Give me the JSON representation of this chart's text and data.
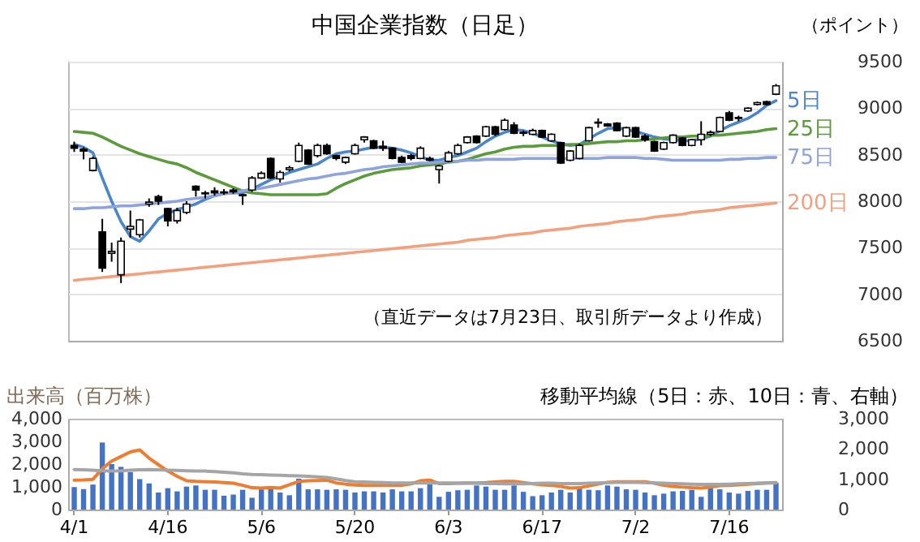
{
  "chart_data": [
    {
      "type": "candlestick",
      "title": "中国企業指数（日足）",
      "ylabel": "（ポイント）",
      "annotations": [
        "（直近データは7月23日、取引所データより作成）"
      ],
      "categories": [
        null,
        null,
        null,
        null,
        null,
        null,
        null,
        null,
        null,
        null,
        null,
        null,
        null,
        null,
        null,
        null,
        null,
        null,
        null,
        null,
        null,
        null,
        null,
        null,
        null,
        null,
        null,
        null,
        null,
        null,
        null,
        null,
        null,
        null,
        null,
        null,
        null,
        null,
        null,
        null,
        null,
        null,
        null,
        null,
        null,
        null,
        null,
        null,
        null,
        null,
        null,
        null,
        null,
        null,
        null,
        null,
        null,
        null,
        null,
        null,
        null,
        null,
        null,
        null,
        null,
        null,
        null,
        null,
        null,
        null,
        null,
        null,
        null,
        null,
        null,
        null
      ],
      "ohlc": [
        [
          8600,
          8640,
          8530,
          8570
        ],
        [
          8560,
          8580,
          8450,
          8540
        ],
        [
          8330,
          8480,
          8320,
          8460
        ],
        [
          7670,
          7810,
          7240,
          7280
        ],
        [
          7440,
          7555,
          7350,
          7460
        ],
        [
          7210,
          7610,
          7120,
          7570
        ],
        [
          7700,
          7900,
          7610,
          7730
        ],
        [
          7640,
          7810,
          7610,
          7800
        ],
        [
          7970,
          8030,
          7940,
          7990
        ],
        [
          8050,
          8070,
          7960,
          8000
        ],
        [
          7920,
          7930,
          7730,
          7790
        ],
        [
          7790,
          7930,
          7760,
          7900
        ],
        [
          7880,
          8000,
          7860,
          7970
        ],
        [
          8160,
          8170,
          8050,
          8120
        ],
        [
          8090,
          8110,
          8030,
          8080
        ],
        [
          8110,
          8150,
          8060,
          8090
        ],
        [
          8100,
          8130,
          8070,
          8090
        ],
        [
          8120,
          8140,
          8080,
          8100
        ],
        [
          8070,
          8080,
          7960,
          8060
        ],
        [
          8120,
          8270,
          8100,
          8250
        ],
        [
          8250,
          8320,
          8240,
          8300
        ],
        [
          8460,
          8470,
          8240,
          8250
        ],
        [
          8240,
          8330,
          8200,
          8310
        ],
        [
          8340,
          8380,
          8320,
          8360
        ],
        [
          8430,
          8630,
          8420,
          8600
        ],
        [
          8550,
          8560,
          8390,
          8400
        ],
        [
          8490,
          8620,
          8470,
          8600
        ],
        [
          8600,
          8620,
          8500,
          8510
        ],
        [
          8490,
          8500,
          8440,
          8460
        ],
        [
          8420,
          8480,
          8400,
          8470
        ],
        [
          8510,
          8620,
          8500,
          8600
        ],
        [
          8660,
          8700,
          8630,
          8690
        ],
        [
          8650,
          8660,
          8560,
          8570
        ],
        [
          8590,
          8650,
          8540,
          8570
        ],
        [
          8570,
          8580,
          8450,
          8460
        ],
        [
          8470,
          8490,
          8410,
          8420
        ],
        [
          8490,
          8510,
          8440,
          8460
        ],
        [
          8460,
          8590,
          8450,
          8570
        ],
        [
          8460,
          8480,
          8430,
          8440
        ],
        [
          8340,
          8390,
          8190,
          8380
        ],
        [
          8430,
          8540,
          8420,
          8520
        ],
        [
          8510,
          8620,
          8500,
          8600
        ],
        [
          8630,
          8700,
          8620,
          8690
        ],
        [
          8700,
          8710,
          8620,
          8630
        ],
        [
          8700,
          8810,
          8690,
          8800
        ],
        [
          8800,
          8810,
          8700,
          8720
        ],
        [
          8770,
          8890,
          8760,
          8870
        ],
        [
          8820,
          8850,
          8720,
          8730
        ],
        [
          8730,
          8760,
          8700,
          8740
        ],
        [
          8720,
          8780,
          8710,
          8760
        ],
        [
          8760,
          8770,
          8680,
          8690
        ],
        [
          8650,
          8730,
          8640,
          8720
        ],
        [
          8630,
          8640,
          8400,
          8410
        ],
        [
          8440,
          8550,
          8430,
          8540
        ],
        [
          8460,
          8620,
          8450,
          8600
        ],
        [
          8650,
          8800,
          8640,
          8790
        ],
        [
          8850,
          8890,
          8790,
          8840
        ],
        [
          8830,
          8840,
          8800,
          8810
        ],
        [
          8840,
          8850,
          8750,
          8760
        ],
        [
          8700,
          8800,
          8690,
          8790
        ],
        [
          8790,
          8800,
          8680,
          8690
        ],
        [
          8700,
          8720,
          8640,
          8660
        ],
        [
          8640,
          8650,
          8530,
          8540
        ],
        [
          8560,
          8640,
          8550,
          8630
        ],
        [
          8630,
          8720,
          8620,
          8710
        ],
        [
          8680,
          8690,
          8590,
          8600
        ],
        [
          8600,
          8670,
          8590,
          8660
        ],
        [
          8660,
          8860,
          8600,
          8720
        ],
        [
          8720,
          8760,
          8700,
          8740
        ],
        [
          8750,
          8910,
          8740,
          8900
        ],
        [
          8950,
          8970,
          8860,
          8870
        ],
        [
          8890,
          8920,
          8860,
          8900
        ],
        [
          8970,
          9010,
          8960,
          9000
        ],
        [
          9040,
          9070,
          9030,
          9060
        ],
        [
          9070,
          9080,
          9030,
          9040
        ],
        [
          9150,
          9260,
          9140,
          9240
        ]
      ],
      "series": [
        {
          "type": "line",
          "name": "5日",
          "color": "#4a86c8",
          "values": [
            8610,
            8580,
            8520,
            8250,
            8000,
            7780,
            7620,
            7570,
            7680,
            7810,
            7870,
            7910,
            7940,
            7970,
            8020,
            8060,
            8080,
            8090,
            8090,
            8130,
            8180,
            8230,
            8270,
            8310,
            8340,
            8370,
            8400,
            8460,
            8510,
            8530,
            8540,
            8560,
            8580,
            8580,
            8570,
            8550,
            8520,
            8480,
            8440,
            8440,
            8470,
            8490,
            8530,
            8570,
            8640,
            8700,
            8740,
            8770,
            8760,
            8730,
            8690,
            8650,
            8620,
            8600,
            8610,
            8670,
            8730,
            8780,
            8790,
            8770,
            8750,
            8720,
            8690,
            8670,
            8660,
            8650,
            8650,
            8670,
            8700,
            8760,
            8810,
            8850,
            8890,
            8950,
            9030,
            9080
          ]
        },
        {
          "type": "line",
          "name": "25日",
          "color": "#5b9b3c",
          "values": [
            8750,
            8740,
            8730,
            8690,
            8640,
            8590,
            8550,
            8510,
            8480,
            8450,
            8420,
            8400,
            8360,
            8310,
            8270,
            8230,
            8190,
            8150,
            8110,
            8090,
            8080,
            8070,
            8070,
            8070,
            8070,
            8070,
            8070,
            8080,
            8140,
            8190,
            8230,
            8270,
            8300,
            8320,
            8340,
            8350,
            8360,
            8380,
            8390,
            8400,
            8420,
            8430,
            8450,
            8480,
            8510,
            8530,
            8560,
            8580,
            8590,
            8590,
            8600,
            8600,
            8600,
            8610,
            8610,
            8620,
            8630,
            8640,
            8640,
            8650,
            8650,
            8660,
            8670,
            8680,
            8690,
            8690,
            8700,
            8700,
            8710,
            8710,
            8720,
            8730,
            8740,
            8750,
            8770,
            8780
          ]
        },
        {
          "type": "line",
          "name": "75日",
          "color": "#8fa3dd",
          "values": [
            7920,
            7920,
            7930,
            7930,
            7940,
            7950,
            7950,
            7960,
            7970,
            7980,
            7990,
            8000,
            8020,
            8030,
            8040,
            8060,
            8080,
            8090,
            8110,
            8130,
            8140,
            8160,
            8180,
            8200,
            8220,
            8240,
            8250,
            8270,
            8290,
            8300,
            8320,
            8340,
            8350,
            8370,
            8380,
            8390,
            8400,
            8410,
            8410,
            8420,
            8430,
            8430,
            8440,
            8440,
            8450,
            8450,
            8450,
            8450,
            8460,
            8460,
            8460,
            8460,
            8460,
            8460,
            8460,
            8460,
            8460,
            8470,
            8470,
            8470,
            8470,
            8460,
            8460,
            8450,
            8440,
            8440,
            8440,
            8440,
            8440,
            8440,
            8450,
            8450,
            8460,
            8460,
            8470,
            8470
          ]
        },
        {
          "type": "line",
          "name": "200日",
          "color": "#f2a07e",
          "values": [
            7150,
            7160,
            7170,
            7180,
            7190,
            7200,
            7210,
            7220,
            7230,
            7240,
            7250,
            7260,
            7270,
            7280,
            7290,
            7300,
            7310,
            7320,
            7330,
            7340,
            7350,
            7360,
            7370,
            7380,
            7390,
            7400,
            7410,
            7420,
            7430,
            7440,
            7450,
            7460,
            7470,
            7480,
            7490,
            7500,
            7510,
            7520,
            7530,
            7540,
            7550,
            7560,
            7580,
            7590,
            7600,
            7610,
            7630,
            7640,
            7650,
            7660,
            7680,
            7690,
            7700,
            7710,
            7730,
            7740,
            7750,
            7760,
            7780,
            7790,
            7800,
            7810,
            7830,
            7840,
            7850,
            7860,
            7880,
            7890,
            7900,
            7910,
            7930,
            7940,
            7950,
            7960,
            7970,
            7980
          ]
        }
      ],
      "ylim": [
        6500,
        9500
      ],
      "yticks": [
        6500,
        7000,
        7500,
        8000,
        8500,
        9000,
        9500
      ],
      "grid": "y",
      "tick_labels": "y"
    },
    {
      "type": "bar",
      "ylabel": "出来高（百万株）",
      "y2label": "移動平均線（5日：赤、10日：青、右軸）",
      "categories": [
        "4/1",
        null,
        null,
        null,
        null,
        null,
        null,
        null,
        null,
        null,
        "4/16",
        null,
        null,
        null,
        null,
        null,
        null,
        null,
        null,
        null,
        "5/6",
        null,
        null,
        null,
        null,
        null,
        null,
        null,
        null,
        null,
        "5/20",
        null,
        null,
        null,
        null,
        null,
        null,
        null,
        null,
        null,
        "6/3",
        null,
        null,
        null,
        null,
        null,
        null,
        null,
        null,
        null,
        "6/17",
        null,
        null,
        null,
        null,
        null,
        null,
        null,
        null,
        null,
        "7/2",
        null,
        null,
        null,
        null,
        null,
        null,
        null,
        null,
        null,
        "7/16",
        null,
        null,
        null,
        null,
        null
      ],
      "series": [
        {
          "color": "#4472c4",
          "values": [
            990,
            900,
            1100,
            2950,
            2000,
            1880,
            1650,
            1340,
            1150,
            750,
            940,
            800,
            1010,
            1060,
            870,
            870,
            610,
            660,
            870,
            520,
            890,
            990,
            750,
            630,
            1360,
            890,
            890,
            870,
            890,
            870,
            750,
            800,
            800,
            750,
            890,
            800,
            800,
            940,
            1340,
            560,
            780,
            850,
            870,
            1060,
            1010,
            870,
            870,
            1060,
            780,
            590,
            630,
            750,
            870,
            750,
            940,
            870,
            850,
            1060,
            1010,
            890,
            870,
            750,
            630,
            700,
            800,
            820,
            870,
            560,
            1010,
            890,
            750,
            700,
            820,
            870,
            870,
            1180
          ]
        },
        {
          "type": "line",
          "axis": "y2",
          "color": "#ed7d31",
          "values": [
            970,
            980,
            1000,
            1350,
            1600,
            1750,
            1900,
            1970,
            1700,
            1480,
            1270,
            1100,
            950,
            930,
            920,
            910,
            890,
            870,
            800,
            720,
            710,
            730,
            710,
            820,
            930,
            950,
            960,
            970,
            880,
            840,
            810,
            800,
            800,
            800,
            800,
            800,
            850,
            950,
            970,
            860,
            860,
            870,
            880,
            880,
            890,
            910,
            930,
            930,
            890,
            850,
            820,
            800,
            760,
            710,
            720,
            780,
            840,
            900,
            920,
            920,
            920,
            920,
            870,
            800,
            760,
            740,
            720,
            710,
            740,
            790,
            800,
            820,
            840,
            860,
            880,
            890
          ]
        },
        {
          "type": "line",
          "axis": "y2",
          "color": "#a5a5a5",
          "values": [
            1320,
            1310,
            1300,
            1280,
            1270,
            1280,
            1300,
            1310,
            1320,
            1310,
            1300,
            1290,
            1280,
            1270,
            1270,
            1250,
            1230,
            1210,
            1180,
            1160,
            1150,
            1140,
            1130,
            1120,
            1110,
            1100,
            1080,
            1060,
            1010,
            960,
            920,
            910,
            900,
            890,
            880,
            880,
            880,
            880,
            880,
            880,
            880,
            870,
            870,
            870,
            860,
            860,
            850,
            850,
            850,
            860,
            870,
            870,
            860,
            860,
            860,
            870,
            880,
            890,
            900,
            900,
            900,
            890,
            880,
            870,
            860,
            850,
            840,
            830,
            830,
            830,
            840,
            850,
            860,
            870,
            880,
            880
          ]
        }
      ],
      "ylim": [
        0,
        4000
      ],
      "yticks": [
        0,
        {
          "value": 1000,
          "label": "1,000"
        },
        {
          "value": 2000,
          "label": "2,000"
        },
        {
          "value": 3000,
          "label": "3,000"
        },
        {
          "value": 4000,
          "label": "4,000"
        }
      ],
      "y2lim": [
        0,
        3000
      ],
      "y2ticks": [
        0,
        {
          "value": 1000,
          "label": "1,000"
        },
        {
          "value": 2000,
          "label": "2,000"
        },
        {
          "value": 3000,
          "label": "3,000"
        }
      ]
    }
  ]
}
